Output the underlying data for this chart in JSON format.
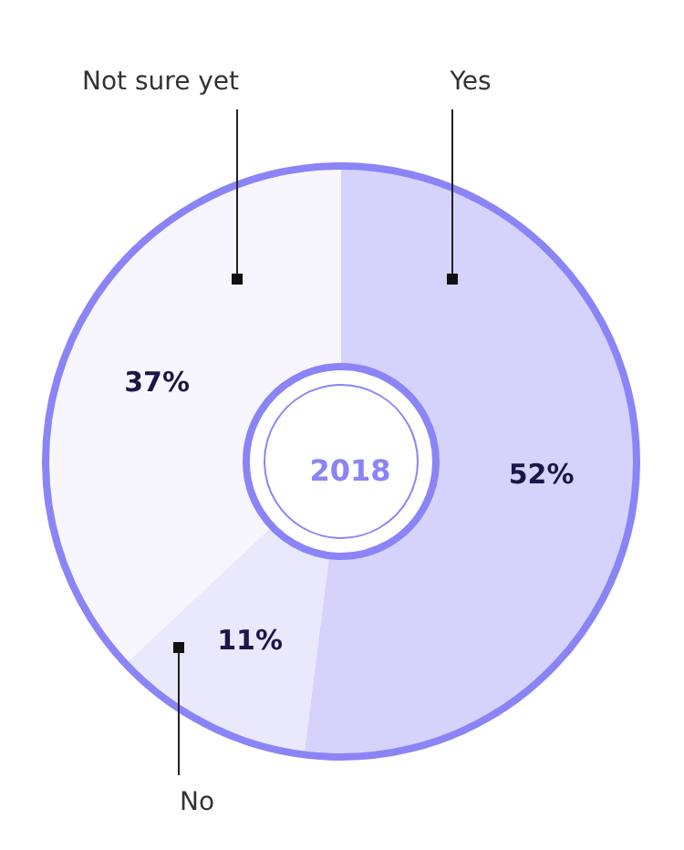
{
  "chart_data": {
    "type": "donut",
    "title": "2018",
    "categories": [
      "Yes",
      "No",
      "Not sure yet"
    ],
    "values": [
      52,
      11,
      37
    ],
    "colors": [
      "#d5d3fc",
      "#e9e8fd",
      "#f7f6fe"
    ],
    "value_labels": [
      "52%",
      "11%",
      "37%"
    ],
    "legend": false
  }
}
